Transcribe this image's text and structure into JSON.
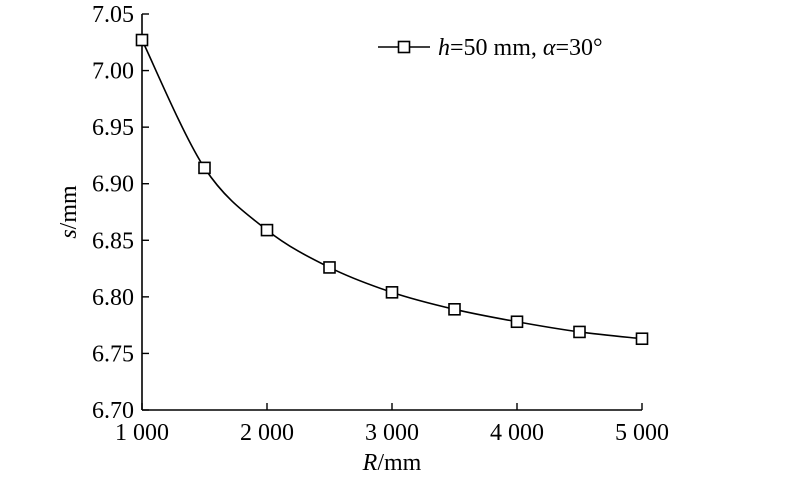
{
  "chart_data": {
    "type": "line",
    "title": "",
    "xlabel": "R/mm",
    "ylabel": "s/mm",
    "x": [
      1000,
      1500,
      2000,
      2500,
      3000,
      3500,
      4000,
      4500,
      5000
    ],
    "xlim": [
      1000,
      5000
    ],
    "ylim": [
      6.7,
      7.05
    ],
    "x_ticks": [
      1000,
      2000,
      3000,
      4000,
      5000
    ],
    "x_tick_labels": [
      "1 000",
      "2 000",
      "3 000",
      "4 000",
      "5 000"
    ],
    "y_ticks": [
      6.7,
      6.75,
      6.8,
      6.85,
      6.9,
      6.95,
      7.0,
      7.05
    ],
    "y_tick_labels": [
      "6.70",
      "6.75",
      "6.80",
      "6.85",
      "6.90",
      "6.95",
      "7.00",
      "7.05"
    ],
    "grid": false,
    "legend_position": "top-right",
    "series": [
      {
        "name": "h=50 mm, α=30°",
        "marker": "square",
        "color": "#000000",
        "values": [
          7.027,
          6.914,
          6.859,
          6.826,
          6.804,
          6.789,
          6.778,
          6.769,
          6.763
        ]
      }
    ]
  }
}
